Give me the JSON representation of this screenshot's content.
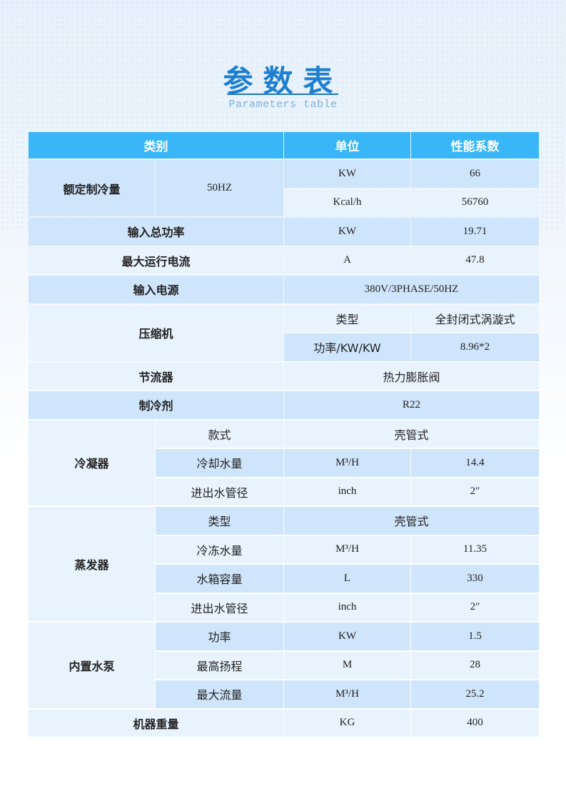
{
  "header": {
    "title": "参数表",
    "subtitle": "Parameters table"
  },
  "table": {
    "columns": [
      "类别",
      "单位",
      "性能系数"
    ],
    "rows": {
      "cooling": {
        "label": "额定制冷量",
        "sub": "50HZ",
        "u1": "KW",
        "v1": "66",
        "u2": "Kcal/h",
        "v2": "56760"
      },
      "power": {
        "label": "输入总功率",
        "unit": "KW",
        "value": "19.71"
      },
      "current": {
        "label": "最大运行电流",
        "unit": "A",
        "value": "47.8"
      },
      "supply": {
        "label": "输入电源",
        "value": "380V/3PHASE/50HZ"
      },
      "compressor": {
        "label": "压缩机",
        "type_label": "类型",
        "type_value": "全封闭式涡漩式",
        "power_label": "功率/KW/KW",
        "power_value": "8.96*2"
      },
      "throttle": {
        "label": "节流器",
        "value": "热力膨胀阀"
      },
      "refrigerant": {
        "label": "制冷剂",
        "value": "R22"
      },
      "condenser": {
        "label": "冷凝器",
        "style_label": "款式",
        "style_value": "壳管式",
        "flow_label": "冷却水量",
        "flow_unit": "M³/H",
        "flow_value": "14.4",
        "pipe_label": "进出水管径",
        "pipe_unit": "inch",
        "pipe_value": "2″"
      },
      "evaporator": {
        "label": "蒸发器",
        "type_label": "类型",
        "type_value": "壳管式",
        "flow_label": "冷冻水量",
        "flow_unit": "M³/H",
        "flow_value": "11.35",
        "tank_label": "水箱容量",
        "tank_unit": "L",
        "tank_value": "330",
        "pipe_label": "进出水管径",
        "pipe_unit": "inch",
        "pipe_value": "2″"
      },
      "pump": {
        "label": "内置水泵",
        "power_label": "功率",
        "power_unit": "KW",
        "power_value": "1.5",
        "head_label": "最高扬程",
        "head_unit": "M",
        "head_value": "28",
        "flow_label": "最大流量",
        "flow_unit": "M³/H",
        "flow_value": "25.2"
      },
      "weight": {
        "label": "机器重量",
        "unit": "KG",
        "value": "400"
      }
    }
  },
  "colors": {
    "header": "#38b6f8",
    "row_dark": "#cfe5fb",
    "row_light": "#e8f3fd",
    "title": "#1e7fd0"
  }
}
